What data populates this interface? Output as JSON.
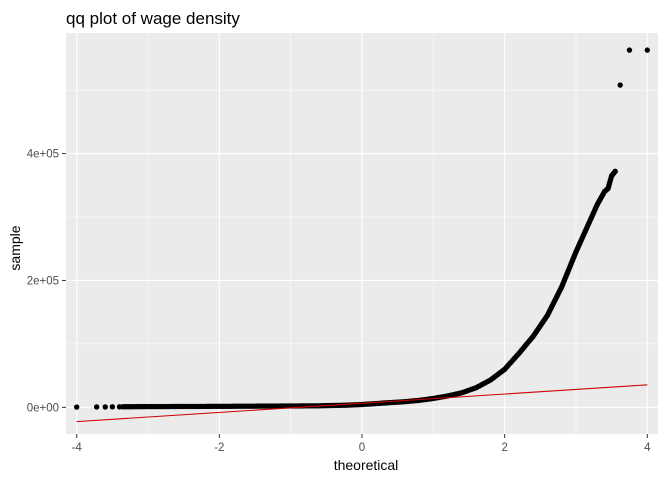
{
  "chart_data": {
    "type": "scatter",
    "title": "qq plot of wage density",
    "xlabel": "theoretical",
    "ylabel": "sample",
    "xlim": [
      -4.15,
      4.15
    ],
    "ylim": [
      -42000,
      590000
    ],
    "x_ticks": [
      -4,
      -2,
      0,
      2,
      4
    ],
    "x_tick_labels": [
      "-4",
      "-2",
      "0",
      "2",
      "4"
    ],
    "y_ticks": [
      0,
      200000,
      400000
    ],
    "y_tick_labels": [
      "0e+00",
      "2e+05",
      "4e+05"
    ],
    "grid": true,
    "legend": "none",
    "reference_line": {
      "x": [
        -4,
        4
      ],
      "y": [
        -22500,
        35500
      ],
      "color": "#cc0000"
    },
    "series": [
      {
        "points": [
          [
            -4.0,
            500
          ],
          [
            -3.72,
            600
          ],
          [
            -3.6,
            700
          ],
          [
            -3.5,
            800
          ],
          [
            -3.4,
            900
          ],
          [
            -3.3,
            1000
          ],
          [
            -3.2,
            1100
          ],
          [
            -3.0,
            1200
          ],
          [
            -2.5,
            1400
          ],
          [
            -2.0,
            1600
          ],
          [
            -1.5,
            1900
          ],
          [
            -1.0,
            2200
          ],
          [
            -0.6,
            2500
          ],
          [
            -0.4,
            3000
          ],
          [
            -0.2,
            3500
          ],
          [
            0.0,
            4500
          ],
          [
            0.2,
            6000
          ],
          [
            0.4,
            7500
          ],
          [
            0.6,
            9000
          ],
          [
            0.8,
            11000
          ],
          [
            1.0,
            14000
          ],
          [
            1.2,
            18000
          ],
          [
            1.4,
            23000
          ],
          [
            1.6,
            31000
          ],
          [
            1.8,
            43000
          ],
          [
            2.0,
            60000
          ],
          [
            2.2,
            85000
          ],
          [
            2.4,
            112000
          ],
          [
            2.6,
            145000
          ],
          [
            2.8,
            190000
          ],
          [
            3.0,
            245000
          ],
          [
            3.1,
            270000
          ],
          [
            3.2,
            295000
          ],
          [
            3.3,
            320000
          ],
          [
            3.4,
            340000
          ],
          [
            3.45,
            345000
          ],
          [
            3.5,
            365000
          ],
          [
            3.55,
            372000
          ],
          [
            3.62,
            508000
          ],
          [
            3.75,
            563000
          ],
          [
            4.0,
            563000
          ]
        ],
        "color": "#000000"
      }
    ]
  }
}
